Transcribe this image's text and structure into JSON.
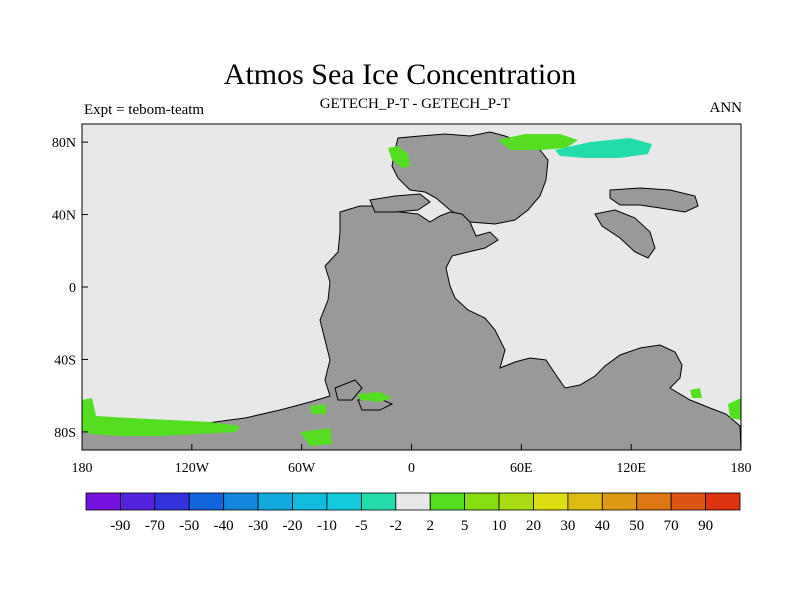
{
  "header": {
    "title": "Atmos Sea Ice Concentration",
    "experiment": "Expt = tebom-teatm",
    "comparison": "GETECH_P-T - GETECH_P-T",
    "season": "ANN"
  },
  "map": {
    "x_ticks": [
      "180",
      "120W",
      "60W",
      "0",
      "60E",
      "120E",
      "180"
    ],
    "y_ticks": [
      "80N",
      "40N",
      "0",
      "40S",
      "80S"
    ],
    "colors": {
      "ocean": "#e8e8e8",
      "land": "#999999",
      "ice_pos_low": "#55dd22",
      "ice_neg_low": "#22ddaa"
    }
  },
  "colorbar": {
    "labels": [
      "-90",
      "-70",
      "-50",
      "-40",
      "-30",
      "-20",
      "-10",
      "-5",
      "-2",
      "2",
      "5",
      "10",
      "20",
      "30",
      "40",
      "50",
      "70",
      "90"
    ],
    "colors": [
      "#7711dd",
      "#5522dd",
      "#3333dd",
      "#1166dd",
      "#1188dd",
      "#11aadd",
      "#11bbdd",
      "#11ccdd",
      "#22ddaa",
      "#e8e8e8",
      "#55dd22",
      "#88dd11",
      "#aadd11",
      "#dddd11",
      "#ddbb11",
      "#dd9911",
      "#dd7711",
      "#dd5511",
      "#dd3311"
    ]
  }
}
